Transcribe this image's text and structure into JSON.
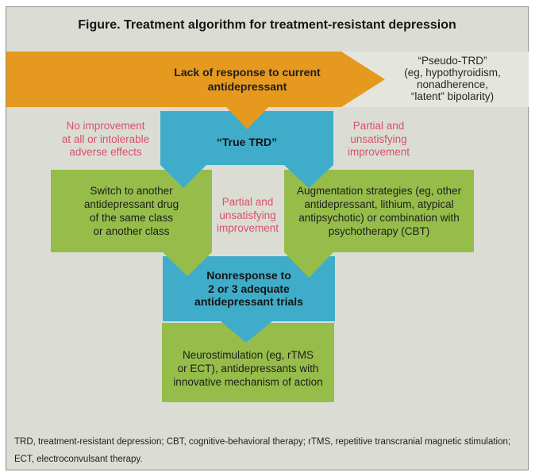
{
  "title": "Figure. Treatment algorithm for treatment-resistant depression",
  "flow": {
    "lack_of_response": {
      "lines": [
        "Lack of response to current",
        "antidepressant"
      ]
    },
    "pseudo_trd": {
      "lines": [
        "“Pseudo-TRD”",
        "(eg, hypothyroidism,",
        "nonadherence,",
        "“latent” bipolarity)"
      ]
    },
    "no_improvement": {
      "lines": [
        "No improvement",
        "at all or intolerable",
        "adverse effects"
      ]
    },
    "true_trd": {
      "label": "“True TRD”"
    },
    "partial_improvement_right": {
      "lines": [
        "Partial and",
        "unsatisfying",
        "improvement"
      ]
    },
    "switch_box": {
      "lines": [
        "Switch to another",
        "antidepressant drug",
        "of the same class",
        "or another class"
      ]
    },
    "partial_improvement_middle": {
      "lines": [
        "Partial and",
        "unsatisfying",
        "improvement"
      ]
    },
    "augmentation_box": {
      "lines": [
        "Augmentation strategies (eg, other",
        "antidepressant, lithium, atypical",
        "antipsychotic) or combination with",
        "psychotherapy (CBT)"
      ]
    },
    "nonresponse": {
      "lines": [
        "Nonresponse to",
        "2 or 3 adequate",
        "antidepressant trials"
      ]
    },
    "neurostimulation_box": {
      "lines": [
        "Neurostimulation (eg, rTMS",
        "or ECT), antidepressants with",
        "innovative mechanism of action"
      ]
    }
  },
  "footnote": {
    "lines": [
      "TRD, treatment-resistant depression; CBT, cognitive-behavioral therapy; rTMS, repetitive transcranial magnetic stimulation;",
      "ECT, electroconvulsant therapy."
    ]
  },
  "colors": {
    "orange": "#e5991e",
    "teal_blue": "#3fadc9",
    "green": "#96bd4a",
    "pink": "#d8506a",
    "background_gray": "#dbddd5",
    "pseudo_strip_gray": "#e4e6de",
    "border_gray": "#8d8f89"
  }
}
